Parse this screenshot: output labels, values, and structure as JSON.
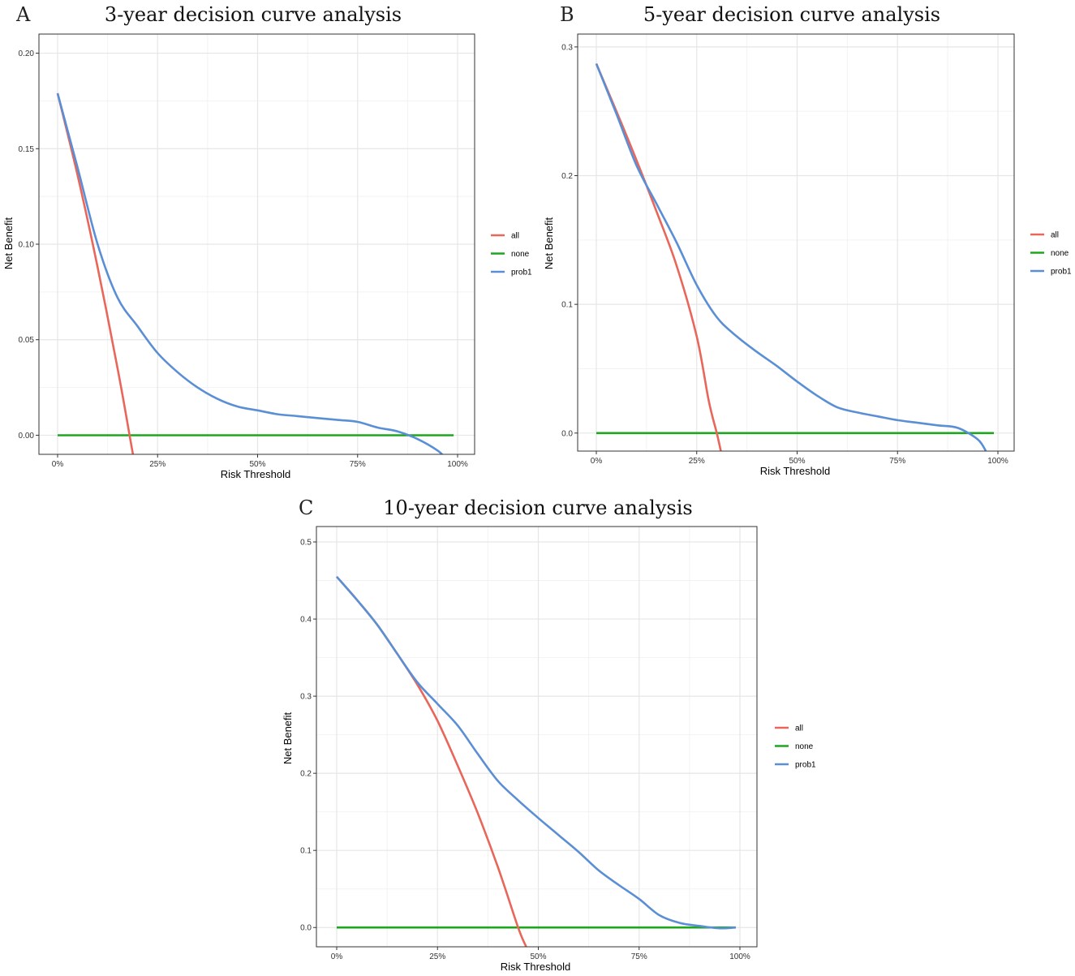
{
  "figure": {
    "background": "#ffffff"
  },
  "style": {
    "grid_major": "#e6e6e6",
    "grid_minor": "#f2f2f2",
    "frame": "#333333",
    "colors": {
      "all": "#e8665a",
      "none": "#1fa51f",
      "prob1": "#5b8fd5"
    }
  },
  "chart_data": [
    {
      "id": "A",
      "type": "line",
      "panel_letter": "A",
      "title": "3-year decision curve analysis",
      "xlabel": "Risk Threshold",
      "ylabel": "Net Benefit",
      "xlim": [
        0,
        1
      ],
      "ylim": [
        -0.01,
        0.21
      ],
      "x_ticks": [
        0,
        0.25,
        0.5,
        0.75,
        1
      ],
      "x_tick_labels": [
        "0%",
        "25%",
        "50%",
        "75%",
        "100%"
      ],
      "y_ticks": [
        0,
        0.05,
        0.1,
        0.15,
        0.2
      ],
      "y_tick_labels": [
        "0.00",
        "0.05",
        "0.10",
        "0.15",
        "0.20"
      ],
      "legend": [
        "all",
        "none",
        "prob1"
      ],
      "legend_position": "right",
      "series": [
        {
          "name": "all",
          "x": [
            0,
            0.05,
            0.1,
            0.15,
            0.18,
            0.19
          ],
          "y": [
            0.179,
            0.136,
            0.088,
            0.035,
            0.0,
            -0.012
          ]
        },
        {
          "name": "none",
          "x": [
            0,
            0.99
          ],
          "y": [
            0,
            0
          ]
        },
        {
          "name": "prob1",
          "x": [
            0,
            0.05,
            0.1,
            0.15,
            0.2,
            0.25,
            0.3,
            0.35,
            0.4,
            0.45,
            0.5,
            0.55,
            0.6,
            0.65,
            0.7,
            0.75,
            0.8,
            0.85,
            0.9,
            0.95,
            0.97
          ],
          "y": [
            0.179,
            0.14,
            0.1,
            0.072,
            0.057,
            0.043,
            0.033,
            0.025,
            0.019,
            0.015,
            0.013,
            0.011,
            0.01,
            0.009,
            0.008,
            0.007,
            0.004,
            0.002,
            -0.002,
            -0.008,
            -0.012
          ]
        }
      ]
    },
    {
      "id": "B",
      "type": "line",
      "panel_letter": "B",
      "title": "5-year decision curve analysis",
      "xlabel": "Risk Threshold",
      "ylabel": "Net Benefit",
      "xlim": [
        0,
        1
      ],
      "ylim": [
        -0.014,
        0.31
      ],
      "x_ticks": [
        0,
        0.25,
        0.5,
        0.75,
        1
      ],
      "x_tick_labels": [
        "0%",
        "25%",
        "50%",
        "75%",
        "100%"
      ],
      "y_ticks": [
        0,
        0.1,
        0.2,
        0.3
      ],
      "y_tick_labels": [
        "0.0",
        "0.1",
        "0.2",
        "0.3"
      ],
      "legend": [
        "all",
        "none",
        "prob1"
      ],
      "legend_position": "right",
      "series": [
        {
          "name": "all",
          "x": [
            0,
            0.05,
            0.1,
            0.15,
            0.2,
            0.25,
            0.28,
            0.3,
            0.31
          ],
          "y": [
            0.287,
            0.25,
            0.212,
            0.172,
            0.13,
            0.075,
            0.025,
            0.0,
            -0.014
          ]
        },
        {
          "name": "none",
          "x": [
            0,
            0.99
          ],
          "y": [
            0,
            0
          ]
        },
        {
          "name": "prob1",
          "x": [
            0,
            0.05,
            0.1,
            0.15,
            0.2,
            0.25,
            0.3,
            0.35,
            0.4,
            0.45,
            0.5,
            0.55,
            0.6,
            0.65,
            0.7,
            0.75,
            0.8,
            0.85,
            0.9,
            0.95,
            0.97
          ],
          "y": [
            0.287,
            0.248,
            0.208,
            0.178,
            0.148,
            0.115,
            0.09,
            0.075,
            0.063,
            0.052,
            0.04,
            0.029,
            0.02,
            0.016,
            0.013,
            0.01,
            0.008,
            0.006,
            0.004,
            -0.005,
            -0.014
          ]
        }
      ]
    },
    {
      "id": "C",
      "type": "line",
      "panel_letter": "C",
      "title": "10-year decision curve analysis",
      "xlabel": "Risk Threshold",
      "ylabel": "Net Benefit",
      "xlim": [
        0,
        1
      ],
      "ylim": [
        -0.025,
        0.52
      ],
      "x_ticks": [
        0,
        0.25,
        0.5,
        0.75,
        1
      ],
      "x_tick_labels": [
        "0%",
        "25%",
        "50%",
        "75%",
        "100%"
      ],
      "y_ticks": [
        0,
        0.1,
        0.2,
        0.3,
        0.4,
        0.5
      ],
      "y_tick_labels": [
        "0.0",
        "0.1",
        "0.2",
        "0.3",
        "0.4",
        "0.5"
      ],
      "legend": [
        "all",
        "none",
        "prob1"
      ],
      "legend_position": "right",
      "series": [
        {
          "name": "all",
          "x": [
            0,
            0.05,
            0.1,
            0.15,
            0.2,
            0.25,
            0.3,
            0.35,
            0.4,
            0.45,
            0.47
          ],
          "y": [
            0.455,
            0.425,
            0.393,
            0.355,
            0.315,
            0.268,
            0.21,
            0.148,
            0.078,
            0.0,
            -0.025
          ]
        },
        {
          "name": "none",
          "x": [
            0,
            0.99
          ],
          "y": [
            0,
            0
          ]
        },
        {
          "name": "prob1",
          "x": [
            0,
            0.05,
            0.1,
            0.15,
            0.2,
            0.25,
            0.3,
            0.35,
            0.4,
            0.45,
            0.5,
            0.55,
            0.6,
            0.65,
            0.7,
            0.75,
            0.8,
            0.85,
            0.9,
            0.95,
            0.99
          ],
          "y": [
            0.455,
            0.425,
            0.393,
            0.355,
            0.318,
            0.29,
            0.262,
            0.225,
            0.19,
            0.165,
            0.142,
            0.12,
            0.098,
            0.074,
            0.055,
            0.037,
            0.016,
            0.006,
            0.002,
            -0.001,
            0.0
          ]
        }
      ]
    }
  ]
}
